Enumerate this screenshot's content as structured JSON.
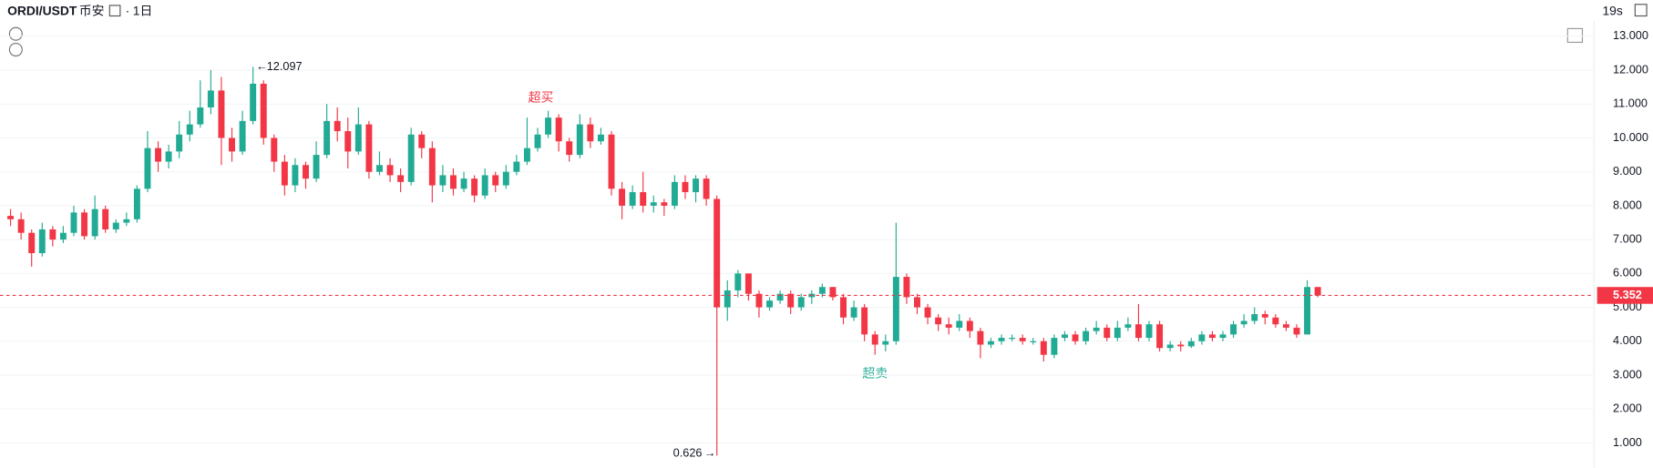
{
  "chart_data": {
    "type": "candlestick",
    "title": "ORDI/USDT",
    "exchange": "币安",
    "interval": "1日",
    "countdown": "19s",
    "annotations": [
      "超买",
      "超卖"
    ],
    "up_color": "#22ab94",
    "down_color": "#f23645",
    "ylim": [
      0.45,
      13.6
    ],
    "yticks": [
      {
        "value": 1,
        "label": "1.000"
      },
      {
        "value": 2,
        "label": "2.000"
      },
      {
        "value": 3,
        "label": "3.000"
      },
      {
        "value": 4,
        "label": "4.000"
      },
      {
        "value": 5,
        "label": "5.000"
      },
      {
        "value": 6,
        "label": "6.000"
      },
      {
        "value": 7,
        "label": "7.000"
      },
      {
        "value": 8,
        "label": "8.000"
      },
      {
        "value": 9,
        "label": "9.000"
      },
      {
        "value": 10,
        "label": "10.000"
      },
      {
        "value": 11,
        "label": "11.000"
      },
      {
        "value": 12,
        "label": "12.000"
      },
      {
        "value": 13,
        "label": "13.000"
      }
    ],
    "grid": true,
    "open": [
      7.7,
      7.6,
      7.2,
      6.6,
      7.3,
      7.0,
      7.2,
      7.8,
      7.1,
      7.9,
      7.3,
      7.5,
      7.6,
      8.5,
      9.7,
      9.3,
      9.6,
      10.1,
      10.4,
      10.9,
      11.4,
      10.0,
      9.6,
      10.5,
      11.6,
      10.0,
      9.3,
      8.6,
      9.2,
      8.8,
      9.5,
      10.5,
      10.2,
      9.6,
      10.4,
      9.0,
      9.2,
      8.9,
      8.7,
      10.1,
      9.7,
      8.6,
      8.9,
      8.5,
      8.8,
      8.3,
      8.9,
      8.6,
      9.0,
      9.3,
      9.7,
      10.1,
      10.6,
      9.9,
      9.5,
      10.4,
      9.9,
      10.1,
      8.5,
      8.0,
      8.4,
      8.0,
      8.1,
      8.0,
      8.7,
      8.4,
      8.8,
      8.2,
      5.0,
      5.5,
      6.0,
      5.4,
      5.0,
      5.2,
      5.4,
      5.0,
      5.3,
      5.4,
      5.6,
      5.3,
      4.7,
      5.0,
      4.2,
      3.9,
      4.0,
      5.9,
      5.3,
      5.0,
      4.7,
      4.5,
      4.4,
      4.6,
      4.3,
      3.9,
      4.0,
      4.1,
      4.1,
      4.0,
      4.0,
      3.6,
      4.1,
      4.2,
      4.0,
      4.3,
      4.4,
      4.1,
      4.4,
      4.5,
      4.1,
      4.5,
      3.8,
      3.9,
      3.85,
      4.0,
      4.2,
      4.1,
      4.2,
      4.5,
      4.6,
      4.8,
      4.7,
      4.5,
      4.4,
      4.2,
      5.6
    ],
    "high": [
      7.9,
      7.8,
      7.3,
      7.5,
      7.4,
      7.4,
      8.0,
      7.9,
      8.3,
      8.0,
      7.6,
      7.8,
      8.6,
      10.2,
      9.9,
      9.8,
      10.5,
      10.8,
      11.7,
      12.0,
      11.8,
      10.3,
      10.8,
      12.097,
      11.7,
      10.1,
      9.5,
      9.4,
      9.3,
      9.9,
      11.0,
      10.9,
      10.6,
      10.9,
      10.5,
      9.6,
      9.4,
      9.1,
      10.3,
      10.2,
      9.9,
      9.2,
      9.1,
      9.0,
      8.9,
      9.1,
      9.0,
      9.2,
      9.5,
      10.6,
      10.3,
      10.8,
      10.7,
      10.0,
      10.7,
      10.6,
      10.3,
      10.2,
      8.7,
      8.6,
      9.0,
      8.3,
      8.2,
      8.9,
      8.9,
      8.9,
      8.9,
      8.3,
      5.8,
      6.1,
      6.0,
      5.5,
      5.3,
      5.5,
      5.5,
      5.4,
      5.5,
      5.7,
      5.6,
      5.4,
      5.2,
      5.1,
      4.3,
      4.2,
      7.5,
      6.0,
      5.4,
      5.1,
      4.8,
      4.7,
      4.8,
      4.7,
      4.4,
      4.1,
      4.2,
      4.2,
      4.2,
      4.1,
      4.1,
      4.2,
      4.3,
      4.3,
      4.4,
      4.6,
      4.5,
      4.6,
      4.7,
      5.1,
      4.6,
      4.6,
      4.0,
      4.0,
      4.1,
      4.3,
      4.3,
      4.3,
      4.6,
      4.8,
      5.0,
      4.9,
      4.8,
      4.6,
      4.5,
      5.8,
      5.6
    ],
    "low": [
      7.4,
      7.0,
      6.2,
      6.5,
      6.8,
      6.9,
      7.1,
      7.0,
      7.0,
      7.2,
      7.2,
      7.4,
      7.5,
      8.4,
      9.0,
      9.1,
      9.4,
      9.9,
      10.3,
      10.7,
      9.2,
      9.3,
      9.5,
      10.4,
      9.8,
      9.0,
      8.3,
      8.4,
      8.5,
      8.7,
      9.4,
      9.9,
      9.1,
      9.5,
      8.8,
      8.9,
      8.7,
      8.4,
      8.6,
      9.4,
      8.1,
      8.4,
      8.3,
      8.4,
      8.1,
      8.2,
      8.4,
      8.5,
      8.9,
      9.2,
      9.6,
      10.0,
      9.6,
      9.3,
      9.4,
      9.7,
      9.8,
      8.3,
      7.6,
      7.9,
      7.8,
      7.8,
      7.7,
      7.9,
      8.2,
      8.1,
      8.0,
      0.626,
      4.6,
      5.3,
      5.2,
      4.7,
      4.9,
      5.1,
      4.8,
      4.9,
      5.1,
      5.3,
      5.2,
      4.5,
      4.6,
      4.0,
      3.6,
      3.7,
      3.9,
      5.1,
      4.8,
      4.5,
      4.3,
      4.2,
      4.3,
      4.1,
      3.5,
      3.8,
      3.9,
      4.0,
      3.9,
      3.9,
      3.4,
      3.5,
      4.0,
      3.9,
      3.9,
      4.2,
      4.0,
      4.0,
      4.3,
      4.0,
      4.0,
      3.7,
      3.7,
      3.7,
      3.8,
      3.9,
      4.0,
      4.0,
      4.1,
      4.4,
      4.5,
      4.5,
      4.4,
      4.3,
      4.1,
      4.2,
      5.3
    ],
    "close": [
      7.6,
      7.2,
      6.6,
      7.3,
      7.0,
      7.2,
      7.8,
      7.1,
      7.9,
      7.3,
      7.5,
      7.6,
      8.5,
      9.7,
      9.3,
      9.6,
      10.1,
      10.4,
      10.9,
      11.4,
      10.0,
      9.6,
      10.5,
      11.6,
      10.0,
      9.3,
      8.6,
      9.2,
      8.8,
      9.5,
      10.5,
      10.2,
      9.6,
      10.4,
      9.0,
      9.2,
      8.9,
      8.7,
      10.1,
      9.7,
      8.6,
      8.9,
      8.5,
      8.8,
      8.3,
      8.9,
      8.6,
      9.0,
      9.3,
      9.7,
      10.1,
      10.6,
      9.9,
      9.5,
      10.4,
      9.9,
      10.1,
      8.5,
      8.0,
      8.4,
      8.0,
      8.1,
      8.0,
      8.7,
      8.4,
      8.8,
      8.2,
      5.0,
      5.5,
      6.0,
      5.4,
      5.0,
      5.2,
      5.4,
      5.0,
      5.3,
      5.4,
      5.6,
      5.3,
      4.7,
      5.0,
      4.2,
      3.9,
      4.0,
      5.9,
      5.3,
      5.0,
      4.7,
      4.5,
      4.4,
      4.6,
      4.3,
      3.9,
      4.0,
      4.1,
      4.1,
      4.0,
      4.0,
      3.6,
      4.1,
      4.2,
      4.0,
      4.3,
      4.4,
      4.1,
      4.4,
      4.5,
      4.1,
      4.5,
      3.8,
      3.9,
      3.85,
      4.0,
      4.2,
      4.1,
      4.2,
      4.5,
      4.6,
      4.8,
      4.7,
      4.5,
      4.4,
      4.2,
      5.6,
      5.352
    ]
  }
}
